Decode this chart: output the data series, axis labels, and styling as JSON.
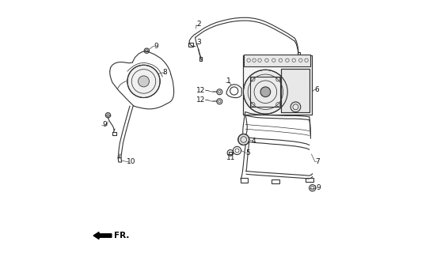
{
  "background_color": "#ffffff",
  "line_color": "#333333",
  "figsize": [
    5.47,
    3.2
  ],
  "dpi": 100
}
